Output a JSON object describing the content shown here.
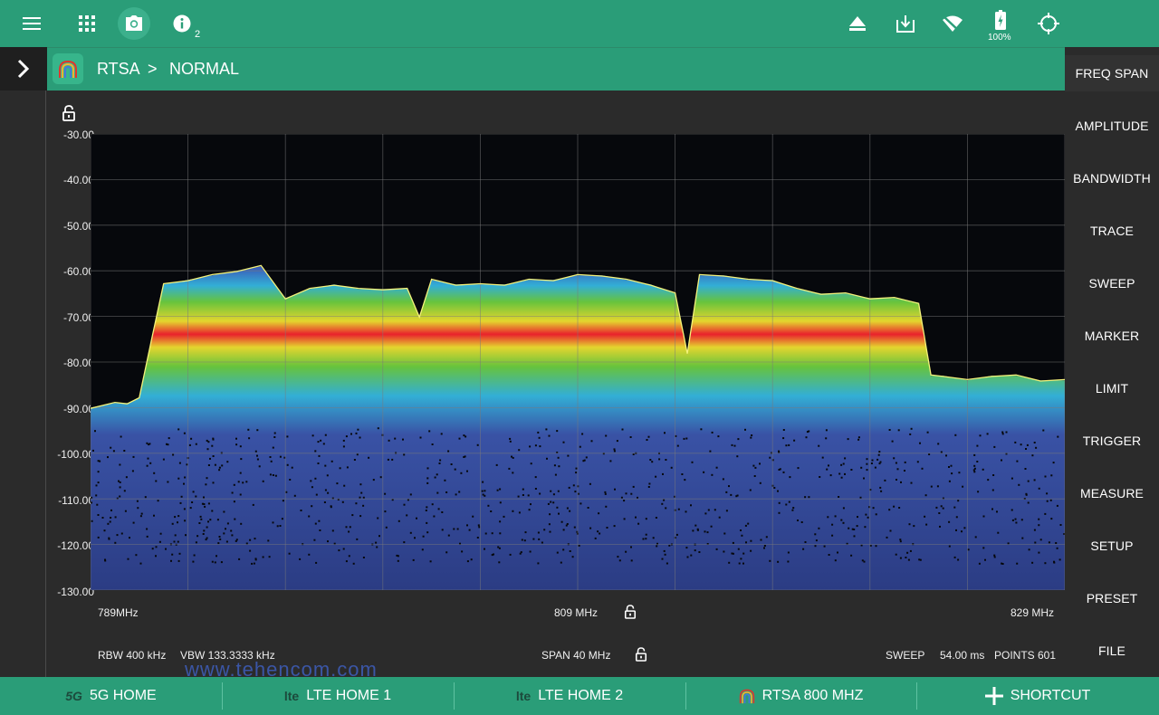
{
  "topbar": {
    "info_count": "2",
    "battery_label": "100%",
    "icons": [
      "menu-icon",
      "apps-grid-icon",
      "camera-icon",
      "info-icon",
      "eject-icon",
      "download-icon",
      "wifi-off-icon",
      "battery-icon",
      "crosshair-icon"
    ]
  },
  "breadcrumb": {
    "app": "RTSA",
    "separator": ">",
    "mode": "NORMAL"
  },
  "sidebar": {
    "items": [
      "FREQ SPAN",
      "AMPLITUDE",
      "BANDWIDTH",
      "TRACE",
      "SWEEP",
      "MARKER",
      "LIMIT",
      "TRIGGER",
      "MEASURE",
      "SETUP",
      "PRESET",
      "FILE"
    ]
  },
  "plot": {
    "y_ticks": [
      "-30.00",
      "-40.00",
      "-50.00",
      "-60.00",
      "-70.00",
      "-80.00",
      "-90.00",
      "-100.00",
      "-110.00",
      "-120.00",
      "-130.00"
    ],
    "freq_start": "789MHz",
    "freq_center": "809 MHz",
    "freq_stop": "829 MHz",
    "rbw_label": "RBW 400 kHz",
    "vbw_label": "VBW 133.3333 kHz",
    "span_label": "SPAN 40 MHz",
    "sweep_label": "SWEEP",
    "sweep_value": "54.00 ms",
    "points_label": "POINTS 601",
    "watermark": "www.tehencom.com",
    "colors": {
      "background": "#06080c",
      "grid": "#7a7a7a",
      "trace": "#f4f27a",
      "persistence_low": "#3c56ad",
      "persistence_mid": "#6ccd3f",
      "persistence_high": "#f5232e"
    }
  },
  "chart_data": {
    "type": "area",
    "xlabel": "",
    "ylabel": "",
    "xlim": [
      789,
      829
    ],
    "ylim": [
      -130,
      -30
    ],
    "grid": true,
    "series": [
      {
        "x": [
          789,
          790,
          790.5,
          791,
          791.5,
          792,
          793,
          794,
          795,
          796,
          797,
          798,
          799,
          800,
          801,
          802,
          802.5,
          803,
          804,
          805,
          806,
          807,
          808,
          809,
          810,
          811,
          812,
          813,
          813.5,
          814,
          815,
          816,
          817,
          818,
          819,
          820,
          821,
          822,
          823,
          823.5,
          824,
          825,
          826,
          827,
          828,
          829
        ],
        "values": [
          -90,
          -89,
          -89,
          -88,
          -75,
          -63,
          -62,
          -61,
          -60,
          -59,
          -66,
          -64,
          -63,
          -64,
          -64,
          -64,
          -70,
          -62,
          -63,
          -63,
          -63,
          -62,
          -62,
          -61,
          -61,
          -62,
          -63,
          -65,
          -78,
          -61,
          -61,
          -62,
          -62,
          -64,
          -65,
          -65,
          -66,
          -66,
          -67,
          -83,
          -83,
          -84,
          -83,
          -83,
          -84,
          -84
        ]
      }
    ]
  },
  "bottombar": {
    "items": [
      {
        "label": "5G HOME",
        "icon": "5g-icon"
      },
      {
        "label": "LTE HOME 1",
        "icon": "lte-icon"
      },
      {
        "label": "LTE HOME 2",
        "icon": "lte-icon"
      },
      {
        "label": "RTSA 800 MHZ",
        "icon": "rtsa-rainbow-icon"
      },
      {
        "label": "SHORTCUT",
        "icon": "plus-icon"
      }
    ]
  }
}
